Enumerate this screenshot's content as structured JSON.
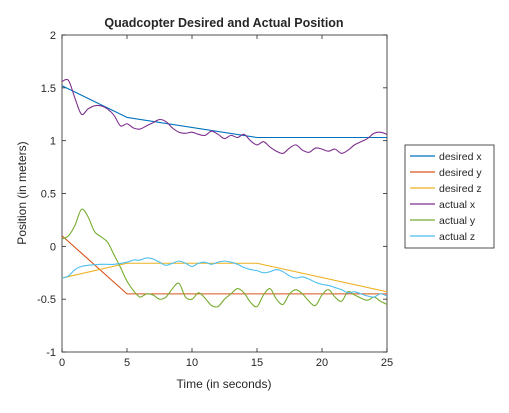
{
  "chart_data": {
    "type": "line",
    "title": "Quadcopter Desired and Actual Position",
    "xlabel": "Time (in seconds)",
    "ylabel": "Position (in meters)",
    "xlim": [
      0,
      25
    ],
    "ylim": [
      -1,
      2
    ],
    "xticks": [
      0,
      5,
      10,
      15,
      20,
      25
    ],
    "yticks": [
      -1,
      -0.5,
      0,
      0.5,
      1,
      1.5,
      2
    ],
    "grid": false,
    "legend_position": "outside-right",
    "series": [
      {
        "name": "desired x",
        "color": "#0072BD",
        "x": [
          0,
          5,
          15,
          25
        ],
        "y": [
          1.52,
          1.22,
          1.03,
          1.03
        ]
      },
      {
        "name": "desired y",
        "color": "#D95319",
        "x": [
          0,
          5,
          25
        ],
        "y": [
          0.1,
          -0.45,
          -0.45
        ]
      },
      {
        "name": "desired z",
        "color": "#EDB120",
        "x": [
          0,
          5,
          15,
          25
        ],
        "y": [
          -0.3,
          -0.16,
          -0.16,
          -0.43
        ]
      },
      {
        "name": "actual x",
        "color": "#7E2F8E",
        "x": [
          0,
          0.5,
          1,
          1.5,
          2,
          2.5,
          3,
          3.5,
          4,
          4.5,
          5,
          5.5,
          6,
          6.5,
          7,
          7.5,
          8,
          8.5,
          9,
          9.5,
          10,
          10.5,
          11,
          11.5,
          12,
          12.5,
          13,
          13.5,
          14,
          14.5,
          15,
          15.5,
          16,
          16.5,
          17,
          17.5,
          18,
          18.5,
          19,
          19.5,
          20,
          20.5,
          21,
          21.5,
          22,
          22.5,
          23,
          23.5,
          24,
          24.5,
          25
        ],
        "y": [
          1.56,
          1.57,
          1.4,
          1.25,
          1.3,
          1.33,
          1.33,
          1.3,
          1.24,
          1.14,
          1.16,
          1.12,
          1.11,
          1.14,
          1.17,
          1.2,
          1.18,
          1.12,
          1.08,
          1.07,
          1.08,
          1.06,
          1.05,
          1.09,
          1.06,
          1.02,
          1.05,
          1.03,
          1.06,
          1.0,
          0.96,
          0.99,
          0.94,
          0.9,
          0.88,
          0.93,
          0.96,
          0.91,
          0.89,
          0.93,
          0.92,
          0.9,
          0.92,
          0.88,
          0.91,
          0.96,
          0.99,
          1.02,
          1.07,
          1.08,
          1.06
        ]
      },
      {
        "name": "actual y",
        "color": "#77AC30",
        "x": [
          0,
          0.5,
          1,
          1.5,
          2,
          2.5,
          3,
          3.5,
          4,
          4.5,
          5,
          5.5,
          6,
          6.5,
          7,
          7.5,
          8,
          8.5,
          9,
          9.5,
          10,
          10.5,
          11,
          11.5,
          12,
          12.5,
          13,
          13.5,
          14,
          14.5,
          15,
          15.5,
          16,
          16.5,
          17,
          17.5,
          18,
          18.5,
          19,
          19.5,
          20,
          20.5,
          21,
          21.5,
          22,
          22.5,
          23,
          23.5,
          24,
          24.5,
          25
        ],
        "y": [
          0.07,
          0.1,
          0.2,
          0.35,
          0.28,
          0.14,
          0.09,
          0.04,
          -0.08,
          -0.2,
          -0.33,
          -0.42,
          -0.48,
          -0.45,
          -0.46,
          -0.5,
          -0.48,
          -0.4,
          -0.35,
          -0.48,
          -0.5,
          -0.44,
          -0.49,
          -0.56,
          -0.57,
          -0.5,
          -0.45,
          -0.4,
          -0.44,
          -0.53,
          -0.57,
          -0.46,
          -0.4,
          -0.5,
          -0.55,
          -0.45,
          -0.41,
          -0.45,
          -0.52,
          -0.56,
          -0.46,
          -0.41,
          -0.48,
          -0.52,
          -0.43,
          -0.46,
          -0.49,
          -0.51,
          -0.48,
          -0.52,
          -0.55
        ]
      },
      {
        "name": "actual z",
        "color": "#4DBEEE",
        "x": [
          0,
          0.5,
          1,
          1.5,
          2,
          3,
          4,
          5,
          5.5,
          6,
          6.5,
          7,
          7.5,
          8,
          8.5,
          9,
          9.5,
          10,
          10.5,
          11,
          11.5,
          12,
          12.5,
          13,
          13.5,
          14,
          14.5,
          15,
          15.5,
          16,
          16.5,
          17,
          17.5,
          18,
          18.5,
          19,
          19.5,
          20,
          20.5,
          21,
          21.5,
          22,
          22.5,
          23,
          23.5,
          24,
          24.5,
          25
        ],
        "y": [
          -0.3,
          -0.28,
          -0.22,
          -0.19,
          -0.18,
          -0.17,
          -0.17,
          -0.15,
          -0.13,
          -0.13,
          -0.11,
          -0.12,
          -0.15,
          -0.18,
          -0.16,
          -0.14,
          -0.16,
          -0.19,
          -0.16,
          -0.15,
          -0.17,
          -0.15,
          -0.14,
          -0.15,
          -0.17,
          -0.2,
          -0.22,
          -0.23,
          -0.25,
          -0.24,
          -0.22,
          -0.24,
          -0.28,
          -0.3,
          -0.29,
          -0.31,
          -0.34,
          -0.36,
          -0.37,
          -0.39,
          -0.41,
          -0.44,
          -0.43,
          -0.45,
          -0.47,
          -0.48,
          -0.45,
          -0.47
        ]
      }
    ]
  }
}
